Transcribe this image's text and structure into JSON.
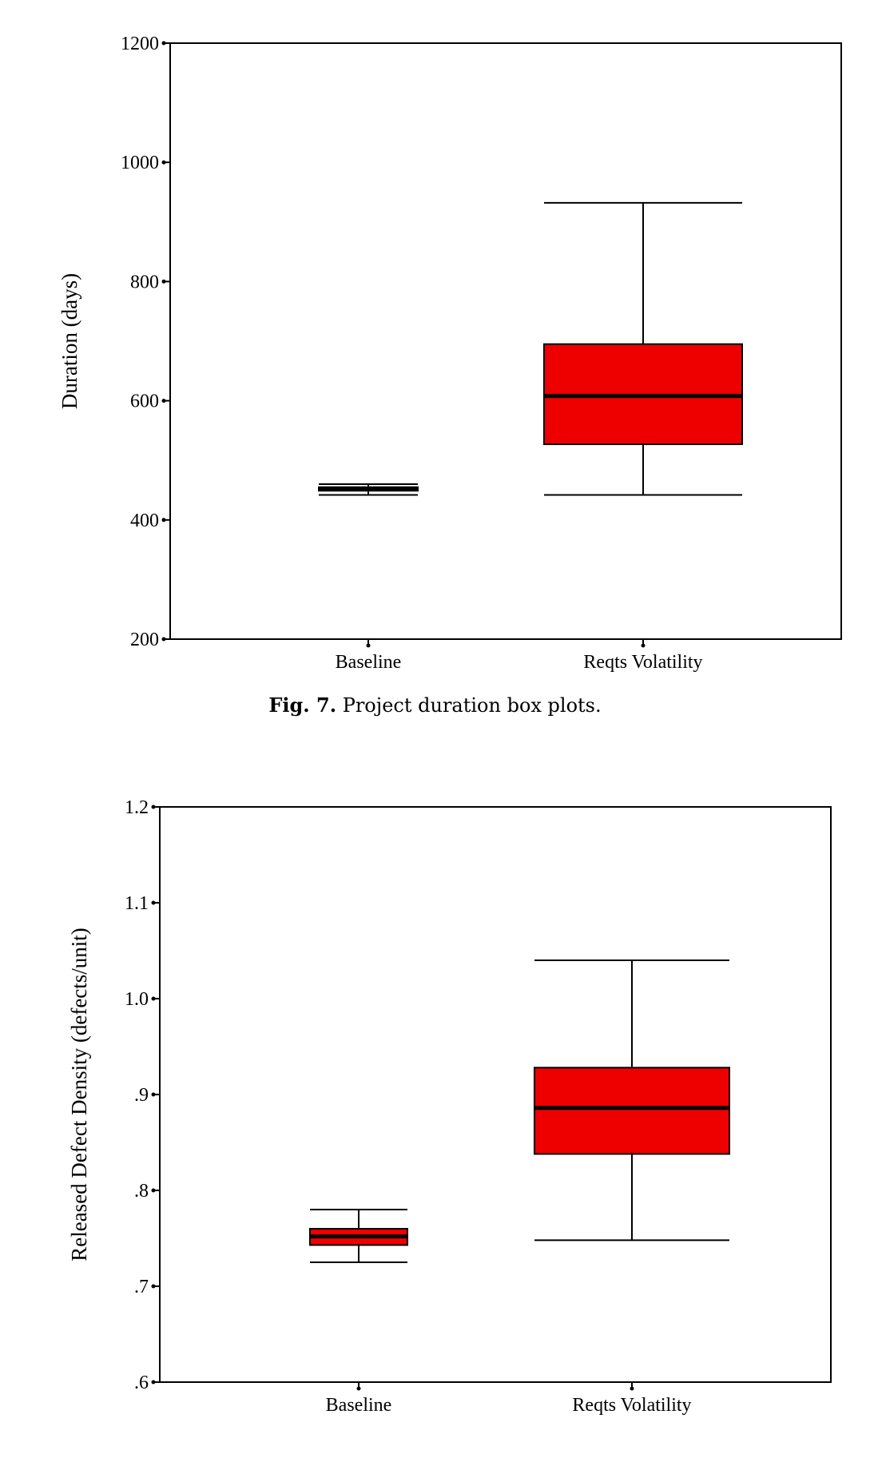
{
  "caption": {
    "label": "Fig. 7.",
    "text": "Project duration box plots."
  },
  "chart_data": [
    {
      "type": "box",
      "title": "",
      "xlabel": "",
      "ylabel": "Duration (days)",
      "ylim": [
        200,
        1200
      ],
      "yticks": [
        {
          "value": 200,
          "label": "200"
        },
        {
          "value": 400,
          "label": "400"
        },
        {
          "value": 600,
          "label": "600"
        },
        {
          "value": 800,
          "label": "800"
        },
        {
          "value": 1000,
          "label": "1000"
        },
        {
          "value": 1200,
          "label": "1200"
        }
      ],
      "categories": [
        "Baseline",
        "Reqts Volatility"
      ],
      "boxes": [
        {
          "category": "Baseline",
          "whisker_low": 442,
          "q1": 449,
          "median": 452,
          "q3": 455,
          "whisker_high": 460
        },
        {
          "category": "Reqts Volatility",
          "whisker_low": 442,
          "q1": 527,
          "median": 608,
          "q3": 695,
          "whisker_high": 932
        }
      ],
      "box_color": "#ee0000",
      "grid": false,
      "legend": "none"
    },
    {
      "type": "box",
      "title": "",
      "xlabel": "",
      "ylabel": "Released Defect Density (defects/unit)",
      "ylim": [
        0.6,
        1.2
      ],
      "yticks": [
        {
          "value": 0.6,
          "label": ".6"
        },
        {
          "value": 0.7,
          "label": ".7"
        },
        {
          "value": 0.8,
          "label": ".8"
        },
        {
          "value": 0.9,
          "label": ".9"
        },
        {
          "value": 1.0,
          "label": "1.0"
        },
        {
          "value": 1.1,
          "label": "1.1"
        },
        {
          "value": 1.2,
          "label": "1.2"
        }
      ],
      "categories": [
        "Baseline",
        "Reqts Volatility"
      ],
      "boxes": [
        {
          "category": "Baseline",
          "whisker_low": 0.725,
          "q1": 0.743,
          "median": 0.752,
          "q3": 0.76,
          "whisker_high": 0.78
        },
        {
          "category": "Reqts Volatility",
          "whisker_low": 0.748,
          "q1": 0.838,
          "median": 0.886,
          "q3": 0.928,
          "whisker_high": 1.04
        }
      ],
      "box_color": "#ee0000",
      "grid": false,
      "legend": "none"
    }
  ]
}
